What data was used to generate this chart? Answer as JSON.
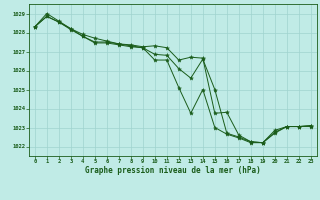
{
  "title": "Graphe pression niveau de la mer (hPa)",
  "bg_color": "#c0ebe6",
  "grid_color": "#a0d4ce",
  "line_color": "#1a5c1a",
  "marker_color": "#1a5c1a",
  "x": [
    0,
    1,
    2,
    3,
    4,
    5,
    6,
    7,
    8,
    9,
    10,
    11,
    12,
    13,
    14,
    15,
    16,
    17,
    18,
    19,
    20,
    21,
    22,
    23
  ],
  "line1": [
    1028.3,
    1028.85,
    1028.55,
    1028.15,
    1027.8,
    1027.45,
    1027.45,
    1027.35,
    1027.25,
    1027.2,
    1026.55,
    1026.55,
    1025.1,
    1023.75,
    1025.0,
    1023.0,
    1022.65,
    1022.45,
    1022.2,
    1022.2,
    1022.7,
    1023.05,
    1023.05,
    1023.05
  ],
  "line2": [
    1028.3,
    1029.0,
    1028.6,
    1028.2,
    1027.9,
    1027.7,
    1027.55,
    1027.4,
    1027.35,
    1027.25,
    1027.3,
    1027.2,
    1026.55,
    1026.7,
    1026.65,
    1023.75,
    1023.8,
    1022.6,
    1022.25,
    1022.2,
    1022.85,
    1023.05,
    1023.05,
    1023.1
  ],
  "line3": [
    1028.3,
    1028.85,
    1028.55,
    1028.2,
    1027.8,
    1027.5,
    1027.5,
    1027.4,
    1027.3,
    1027.2,
    1026.85,
    1026.8,
    1026.1,
    1025.6,
    1026.6,
    1025.0,
    1022.7,
    1022.5,
    1022.25,
    1022.2,
    1022.75,
    1023.05,
    1023.05,
    1023.1
  ],
  "ylim": [
    1021.5,
    1029.5
  ],
  "yticks": [
    1022,
    1023,
    1024,
    1025,
    1026,
    1027,
    1028,
    1029
  ],
  "xlim": [
    -0.5,
    23.5
  ],
  "xticks": [
    0,
    1,
    2,
    3,
    4,
    5,
    6,
    7,
    8,
    9,
    10,
    11,
    12,
    13,
    14,
    15,
    16,
    17,
    18,
    19,
    20,
    21,
    22,
    23
  ]
}
